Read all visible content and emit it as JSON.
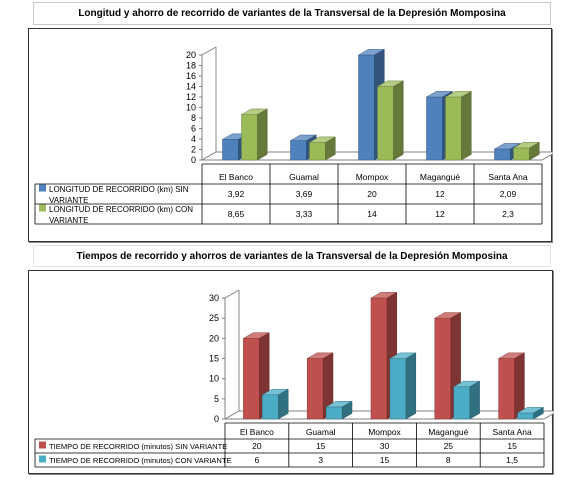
{
  "chart_data": [
    {
      "type": "bar",
      "title": "Longitud y ahorro de recorrido de variantes de la Transversal de la Depresión Momposina",
      "categories": [
        "El Banco",
        "Guamal",
        "Mompox",
        "Magangué",
        "Santa Ana"
      ],
      "series": [
        {
          "name": "LONGITUD DE RECORRIDO (km) SIN VARIANTE",
          "values": [
            3.92,
            3.69,
            20,
            12,
            2.09
          ],
          "labels": [
            "3,92",
            "3,69",
            "20",
            "12",
            "2,09"
          ]
        },
        {
          "name": "LONGITUD DE RECORRIDO (km) CON VARIANTE",
          "values": [
            8.65,
            3.33,
            14,
            12,
            2.3
          ],
          "labels": [
            "8,65",
            "3,33",
            "14",
            "12",
            "2,3"
          ]
        }
      ],
      "ylim": [
        0,
        20
      ],
      "yticks": [
        "0",
        "2",
        "4",
        "6",
        "8",
        "10",
        "12",
        "14",
        "16",
        "18",
        "20"
      ],
      "colors": [
        "#4f81bd",
        "#9bbb59"
      ],
      "legend": "data-table"
    },
    {
      "type": "bar",
      "title": "Tiempos de recorrido y ahorros  de variantes de la Transversal de la Depresión Momposina",
      "categories": [
        "El Banco",
        "Guamal",
        "Mompox",
        "Magangué",
        "Santa Ana"
      ],
      "series": [
        {
          "name": "TIEMPO DE RECORRIDO (minutos) SIN VARIANTE",
          "values": [
            20,
            15,
            30,
            25,
            15
          ],
          "labels": [
            "20",
            "15",
            "30",
            "25",
            "15"
          ]
        },
        {
          "name": "TIEMPO DE RECORRIDO (minutos) CON VARIANTE",
          "values": [
            6,
            3,
            15,
            8,
            1.5
          ],
          "labels": [
            "6",
            "3",
            "15",
            "8",
            "1,5"
          ]
        }
      ],
      "ylim": [
        0,
        30
      ],
      "yticks": [
        "0",
        "5",
        "10",
        "15",
        "20",
        "25",
        "30"
      ],
      "colors": [
        "#c0504d",
        "#4bacc6"
      ],
      "legend": "data-table"
    }
  ]
}
